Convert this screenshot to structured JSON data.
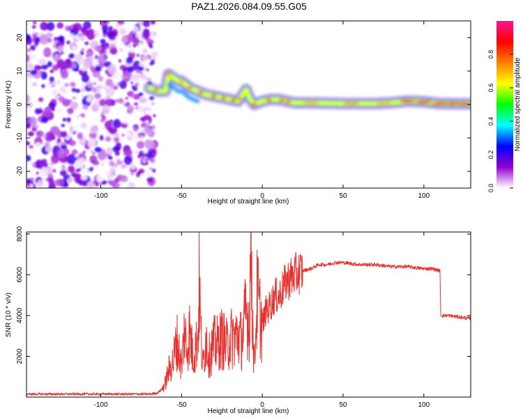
{
  "title": "PAZ1.2026.084.09.55.G05",
  "chart_data": [
    {
      "type": "heatmap",
      "xlabel": "Height of straight line (km)",
      "ylabel": "Frequency (Hz)",
      "xlim": [
        -146,
        129
      ],
      "ylim": [
        -25,
        25
      ],
      "xticks": [
        -100,
        -50,
        0,
        50,
        100
      ],
      "xtick_labels": [
        "-100",
        "-50",
        "0",
        "50",
        "100"
      ],
      "yticks": [
        -20,
        -10,
        0,
        10,
        20
      ],
      "ytick_labels": [
        "-20",
        "-10",
        "0",
        "10",
        "20"
      ],
      "noise_region_x": [
        -146,
        -69
      ],
      "ridge": {
        "name": "dominant frequency ridge",
        "x": [
          -70,
          -65,
          -60,
          -58,
          -55,
          -52,
          -50,
          -45,
          -40,
          -35,
          -30,
          -25,
          -20,
          -15,
          -12,
          -10,
          -8,
          -5,
          0,
          5,
          10,
          15,
          20,
          30,
          50,
          70,
          80,
          90,
          100,
          110,
          120,
          129
        ],
        "y": [
          5,
          4,
          4,
          9,
          8,
          7,
          7,
          5,
          4,
          3,
          2.5,
          2,
          1.5,
          1,
          3,
          4.5,
          2,
          0,
          1,
          1.5,
          1.5,
          1,
          0.5,
          0.5,
          0.3,
          0.3,
          0.5,
          1,
          0.8,
          0.3,
          0.2,
          0.2
        ]
      },
      "colorbar": {
        "label": "Normalized spectral amplitude",
        "range": [
          0,
          1
        ],
        "ticks": [
          0.0,
          0.2,
          0.4,
          0.6,
          0.8
        ],
        "tick_labels": [
          "0.0",
          "0.2",
          "0.4",
          "0.6",
          "0.8"
        ],
        "colors": [
          "#ffffff",
          "#9400d3",
          "#0000ff",
          "#00ffff",
          "#00ff00",
          "#ffff00",
          "#ff7f00",
          "#ff0000",
          "#ff1493"
        ]
      }
    },
    {
      "type": "line",
      "xlabel": "Height of straight line (km)",
      "ylabel": "SNR (10 * v/v)",
      "xlim": [
        -146,
        129
      ],
      "ylim": [
        0,
        8100
      ],
      "xticks": [
        -100,
        -50,
        0,
        50,
        100
      ],
      "xtick_labels": [
        "-100",
        "-50",
        "0",
        "50",
        "100"
      ],
      "yticks": [
        2000,
        4000,
        6000,
        8000
      ],
      "ytick_labels": [
        "2000",
        "4000",
        "6000",
        "8000"
      ],
      "series": [
        {
          "name": "SNR",
          "color": "#e8322f",
          "x": [
            -146,
            -120,
            -100,
            -80,
            -70,
            -65,
            -62,
            -60,
            -58,
            -55,
            -53,
            -50,
            -48,
            -47,
            -45,
            -43,
            -40,
            -39,
            -38,
            -37,
            -36,
            -35,
            -33,
            -30,
            -28,
            -25,
            -22,
            -20,
            -18,
            -15,
            -13,
            -12,
            -10,
            -8,
            -7,
            -6,
            -5,
            -4,
            -3,
            -2,
            0,
            2,
            5,
            8,
            10,
            15,
            20,
            25,
            30,
            35,
            40,
            45,
            50,
            60,
            70,
            80,
            90,
            100,
            105,
            110,
            110.5,
            115,
            120,
            129
          ],
          "y": [
            150,
            150,
            150,
            150,
            150,
            200,
            400,
            700,
            1300,
            1800,
            2800,
            1500,
            3500,
            2200,
            3200,
            2000,
            2800,
            5600,
            3000,
            1500,
            2000,
            3000,
            2000,
            2600,
            2600,
            2900,
            2500,
            2900,
            2900,
            3000,
            2800,
            3100,
            4200,
            3700,
            8000,
            3800,
            1500,
            3500,
            5200,
            4200,
            3500,
            4200,
            4500,
            5000,
            4900,
            5700,
            6000,
            6200,
            6300,
            6500,
            6500,
            6600,
            6600,
            6500,
            6500,
            6400,
            6400,
            6300,
            6300,
            6200,
            4000,
            4000,
            3950,
            3850
          ]
        }
      ]
    }
  ]
}
